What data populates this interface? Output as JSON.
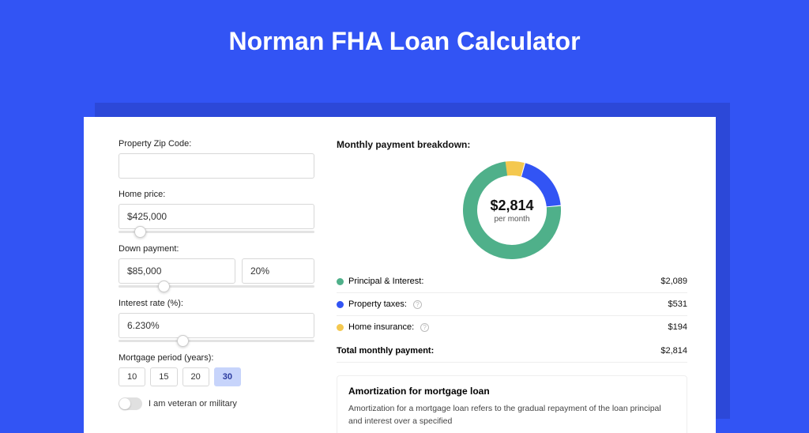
{
  "page_title": "Norman FHA Loan Calculator",
  "colors": {
    "page_bg": "#3254f4",
    "shadow": "#2c48d8",
    "card_bg": "#ffffff",
    "border": "#d8d8d8",
    "selected_bg": "#c7d4fb"
  },
  "form": {
    "zip": {
      "label": "Property Zip Code:",
      "value": ""
    },
    "home_price": {
      "label": "Home price:",
      "value": "$425,000",
      "slider_pct": 8
    },
    "down_payment": {
      "label": "Down payment:",
      "amount": "$85,000",
      "percent": "20%",
      "slider_pct": 20
    },
    "interest": {
      "label": "Interest rate (%):",
      "value": "6.230%",
      "slider_pct": 30
    },
    "period": {
      "label": "Mortgage period (years):",
      "options": [
        "10",
        "15",
        "20",
        "30"
      ],
      "selected": "30"
    },
    "veteran": {
      "label": "I am veteran or military",
      "checked": false
    }
  },
  "breakdown": {
    "title": "Monthly payment breakdown:",
    "center_value": "$2,814",
    "center_label": "per month",
    "items": [
      {
        "label": "Principal & Interest:",
        "value": "$2,089",
        "color": "#4fb08a",
        "info": false,
        "pct": 74.2
      },
      {
        "label": "Property taxes:",
        "value": "$531",
        "color": "#3254f4",
        "info": true,
        "pct": 18.9
      },
      {
        "label": "Home insurance:",
        "value": "$194",
        "color": "#f4c84f",
        "info": true,
        "pct": 6.9
      }
    ],
    "total_label": "Total monthly payment:",
    "total_value": "$2,814"
  },
  "donut": {
    "size": 124,
    "stroke": 18,
    "bg": "#ffffff"
  },
  "amortization": {
    "title": "Amortization for mortgage loan",
    "text": "Amortization for a mortgage loan refers to the gradual repayment of the loan principal and interest over a specified"
  }
}
